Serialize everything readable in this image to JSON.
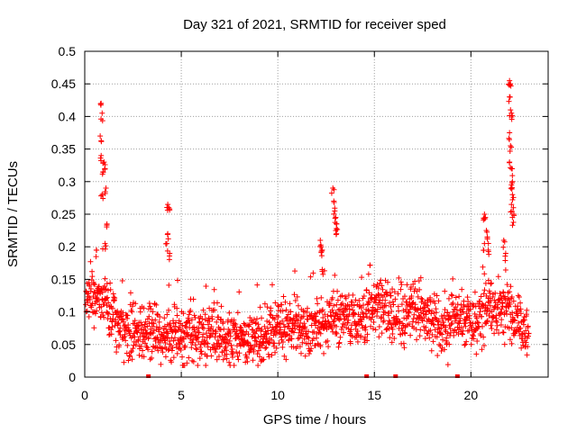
{
  "chart_data": {
    "type": "scatter",
    "title": "Day 321 of 2021, SRMTID for receiver sped",
    "xlabel": "GPS time / hours",
    "ylabel": "SRMTID / TECUs",
    "xlim": [
      0,
      24
    ],
    "ylim": [
      0,
      0.5
    ],
    "x_ticks": [
      "0",
      "5",
      "10",
      "15",
      "20"
    ],
    "y_ticks": [
      "0",
      "0.05",
      "0.1",
      "0.15",
      "0.2",
      "0.25",
      "0.3",
      "0.35",
      "0.4",
      "0.45",
      "0.5"
    ],
    "grid": true,
    "marker": "plus",
    "color": "#ff0000",
    "gap_markers_x": [
      3.3,
      14.6,
      16.1,
      19.3
    ],
    "baseline": [
      [
        0,
        0.115
      ],
      [
        0.5,
        0.125
      ],
      [
        1,
        0.12
      ],
      [
        1.5,
        0.09
      ],
      [
        2,
        0.07
      ],
      [
        2.5,
        0.065
      ],
      [
        3,
        0.07
      ],
      [
        3.5,
        0.07
      ],
      [
        4,
        0.06
      ],
      [
        4.5,
        0.065
      ],
      [
        5,
        0.065
      ],
      [
        6,
        0.06
      ],
      [
        7,
        0.06
      ],
      [
        8,
        0.055
      ],
      [
        8.5,
        0.05
      ],
      [
        9,
        0.06
      ],
      [
        9.5,
        0.07
      ],
      [
        10,
        0.08
      ],
      [
        11,
        0.08
      ],
      [
        11.5,
        0.07
      ],
      [
        12,
        0.08
      ],
      [
        13,
        0.085
      ],
      [
        14,
        0.085
      ],
      [
        14.5,
        0.09
      ],
      [
        15,
        0.11
      ],
      [
        15.5,
        0.11
      ],
      [
        16,
        0.085
      ],
      [
        17,
        0.1
      ],
      [
        18,
        0.09
      ],
      [
        18.5,
        0.075
      ],
      [
        19,
        0.085
      ],
      [
        19.5,
        0.09
      ],
      [
        20,
        0.085
      ],
      [
        20.5,
        0.09
      ],
      [
        21,
        0.11
      ],
      [
        21.5,
        0.1
      ],
      [
        22,
        0.11
      ],
      [
        22.5,
        0.08
      ],
      [
        23,
        0.07
      ]
    ],
    "peaks": [
      {
        "x": 0.85,
        "y": 0.42
      },
      {
        "x": 0.9,
        "y": 0.405
      },
      {
        "x": 0.8,
        "y": 0.37
      },
      {
        "x": 0.85,
        "y": 0.34
      },
      {
        "x": 1.0,
        "y": 0.33
      },
      {
        "x": 1.05,
        "y": 0.32
      },
      {
        "x": 0.95,
        "y": 0.315
      },
      {
        "x": 1.1,
        "y": 0.29
      },
      {
        "x": 0.9,
        "y": 0.28
      },
      {
        "x": 1.15,
        "y": 0.235
      },
      {
        "x": 1.05,
        "y": 0.205
      },
      {
        "x": 0.6,
        "y": 0.195
      },
      {
        "x": 4.3,
        "y": 0.265
      },
      {
        "x": 4.35,
        "y": 0.26
      },
      {
        "x": 4.3,
        "y": 0.22
      },
      {
        "x": 4.25,
        "y": 0.205
      },
      {
        "x": 4.4,
        "y": 0.19
      },
      {
        "x": 12.2,
        "y": 0.21
      },
      {
        "x": 12.25,
        "y": 0.2
      },
      {
        "x": 12.3,
        "y": 0.195
      },
      {
        "x": 12.3,
        "y": 0.165
      },
      {
        "x": 12.85,
        "y": 0.29
      },
      {
        "x": 12.9,
        "y": 0.27
      },
      {
        "x": 12.95,
        "y": 0.255
      },
      {
        "x": 13.0,
        "y": 0.245
      },
      {
        "x": 13.05,
        "y": 0.235
      },
      {
        "x": 13.0,
        "y": 0.225
      },
      {
        "x": 22.0,
        "y": 0.455
      },
      {
        "x": 22.05,
        "y": 0.45
      },
      {
        "x": 22.0,
        "y": 0.43
      },
      {
        "x": 22.05,
        "y": 0.41
      },
      {
        "x": 22.1,
        "y": 0.405
      },
      {
        "x": 22.0,
        "y": 0.375
      },
      {
        "x": 22.05,
        "y": 0.355
      },
      {
        "x": 22.0,
        "y": 0.33
      },
      {
        "x": 22.1,
        "y": 0.32
      },
      {
        "x": 22.15,
        "y": 0.3
      },
      {
        "x": 22.1,
        "y": 0.295
      },
      {
        "x": 22.15,
        "y": 0.28
      },
      {
        "x": 22.1,
        "y": 0.265
      },
      {
        "x": 22.2,
        "y": 0.26
      },
      {
        "x": 22.15,
        "y": 0.245
      },
      {
        "x": 21.7,
        "y": 0.21
      },
      {
        "x": 21.8,
        "y": 0.19
      },
      {
        "x": 20.7,
        "y": 0.25
      },
      {
        "x": 20.75,
        "y": 0.245
      },
      {
        "x": 20.8,
        "y": 0.225
      },
      {
        "x": 20.85,
        "y": 0.215
      },
      {
        "x": 20.7,
        "y": 0.205
      },
      {
        "x": 20.9,
        "y": 0.195
      }
    ]
  }
}
